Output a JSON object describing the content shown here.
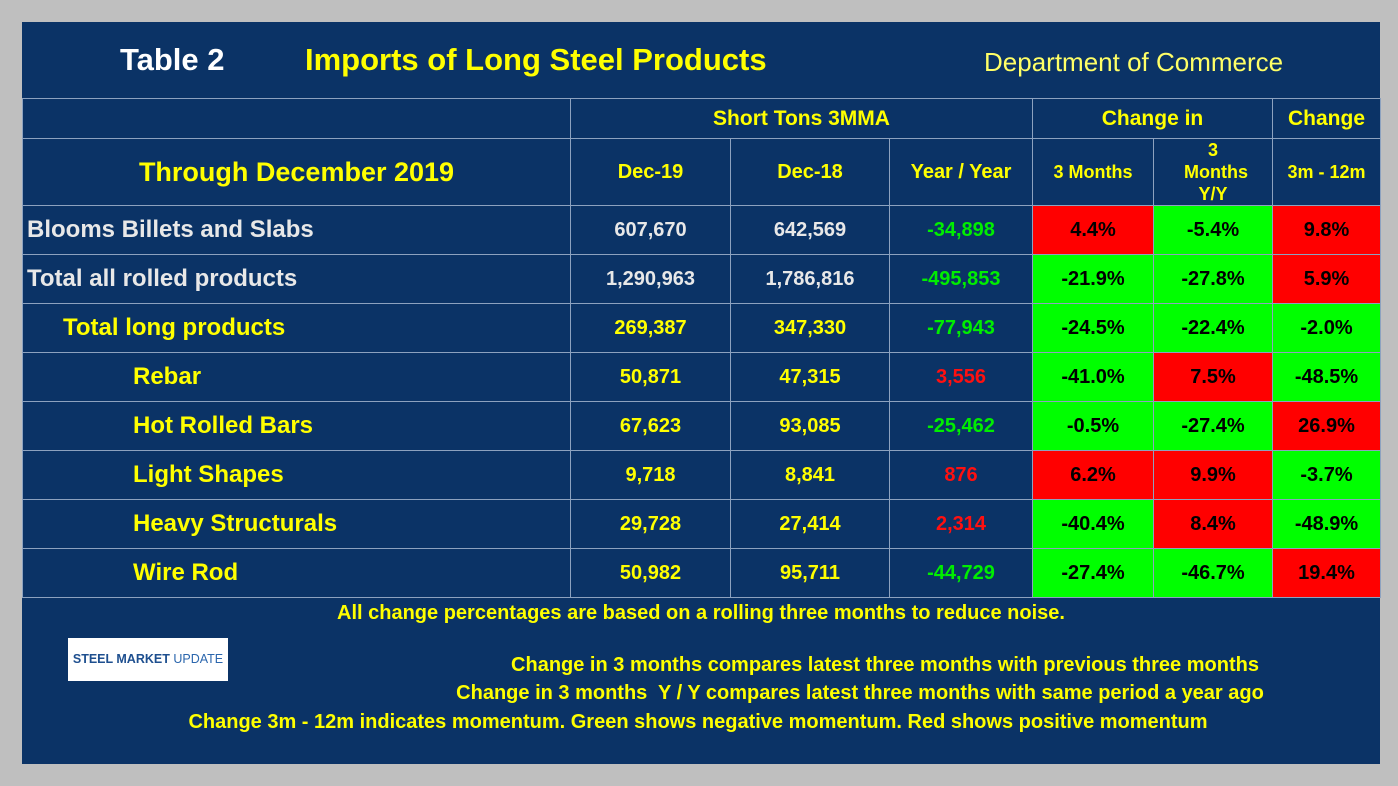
{
  "header": {
    "table_no": "Table 2",
    "title": "Imports of Long Steel Products",
    "source": "Department of Commerce"
  },
  "table": {
    "group_headers": [
      "Short Tons 3MMA",
      "Change in",
      "Change"
    ],
    "columns": [
      "Through December 2019",
      "Dec-19",
      "Dec-18",
      "Year / Year",
      "3 Months",
      "3 Months Y/Y",
      "3m - 12m"
    ],
    "rows": [
      [
        "Blooms Billets and Slabs",
        "607,670",
        "642,569",
        "-34,898",
        "4.4%",
        "-5.4%",
        "9.8%"
      ],
      [
        "Total all rolled products",
        "1,290,963",
        "1,786,816",
        "-495,853",
        "-21.9%",
        "-27.8%",
        "5.9%"
      ],
      [
        "Total long products",
        "269,387",
        "347,330",
        "-77,943",
        "-24.5%",
        "-22.4%",
        "-2.0%"
      ],
      [
        "Rebar",
        "50,871",
        "47,315",
        "3,556",
        "-41.0%",
        "7.5%",
        "-48.5%"
      ],
      [
        "Hot Rolled Bars",
        "67,623",
        "93,085",
        "-25,462",
        "-0.5%",
        "-27.4%",
        "26.9%"
      ],
      [
        "Light Shapes",
        "9,718",
        "8,841",
        "876",
        "6.2%",
        "9.9%",
        "-3.7%"
      ],
      [
        "Heavy Structurals",
        "29,728",
        "27,414",
        "2,314",
        "-40.4%",
        "8.4%",
        "-48.9%"
      ],
      [
        "Wire Rod",
        "50,982",
        "95,711",
        "-44,729",
        "-27.4%",
        "-46.7%",
        "19.4%"
      ]
    ],
    "year_year_colors": [
      "green",
      "green",
      "green",
      "red",
      "green",
      "red",
      "red",
      "green"
    ],
    "change_colors": [
      [
        "red",
        "green",
        "red"
      ],
      [
        "green",
        "green",
        "red"
      ],
      [
        "green",
        "green",
        "green"
      ],
      [
        "green",
        "red",
        "green"
      ],
      [
        "green",
        "green",
        "red"
      ],
      [
        "red",
        "red",
        "green"
      ],
      [
        "green",
        "red",
        "green"
      ],
      [
        "green",
        "green",
        "red"
      ]
    ]
  },
  "notes": [
    "All change percentages are based on a rolling three months to reduce noise.",
    "Change in 3 months compares latest three months with previous three months",
    "Change in 3 months  Y / Y compares latest three months with same period a year ago",
    "Change 3m - 12m indicates momentum. Green shows negative momentum. Red shows positive momentum"
  ],
  "logo": [
    "STEEL MARKET",
    "UPDATE"
  ]
}
